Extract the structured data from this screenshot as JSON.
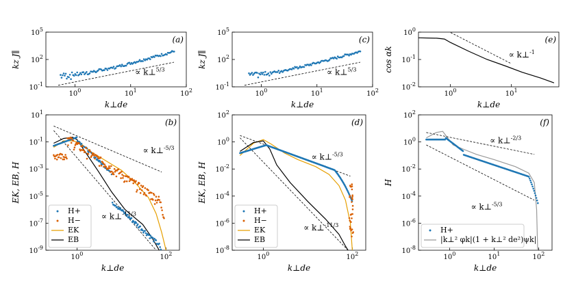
{
  "chart_data": [
    {
      "id": "a",
      "type": "scatter",
      "panel_label": "(a)",
      "xscale": "log",
      "yscale": "log",
      "xlim": [
        0.3,
        100
      ],
      "ylim": [
        0.1,
        100000
      ],
      "xticks": [
        {
          "v": 1,
          "t": "10^0"
        },
        {
          "v": 10,
          "t": "10^1"
        },
        {
          "v": 100,
          "t": "10^2"
        }
      ],
      "yticks": [
        {
          "v": 0.1,
          "t": "10^-1"
        },
        {
          "v": 100,
          "t": "10^2"
        },
        {
          "v": 100000,
          "t": "10^5"
        }
      ],
      "xlabel": "k⊥de",
      "ylabel": "kz J∥",
      "scatter_fn": "slope53_a",
      "color": "#1f77b4",
      "lines": [
        {
          "dash": true,
          "pts": [
            [
              0.5,
              0.15
            ],
            [
              60,
              50
            ]
          ]
        }
      ],
      "annotations": [
        {
          "text": "∝ k⊥^5/3",
          "x": 12,
          "y": 2
        }
      ]
    },
    {
      "id": "c",
      "type": "scatter",
      "panel_label": "(c)",
      "xscale": "log",
      "yscale": "log",
      "xlim": [
        0.3,
        100
      ],
      "ylim": [
        0.1,
        100000
      ],
      "xticks": [
        {
          "v": 1,
          "t": "10^0"
        },
        {
          "v": 10,
          "t": "10^1"
        },
        {
          "v": 100,
          "t": "10^2"
        }
      ],
      "yticks": [
        {
          "v": 0.1,
          "t": "10^-1"
        },
        {
          "v": 100,
          "t": "10^2"
        },
        {
          "v": 100000,
          "t": "10^5"
        }
      ],
      "xlabel": "k⊥de",
      "ylabel": "kz J∥",
      "scatter_fn": "slope53_c",
      "color": "#1f77b4",
      "lines": [
        {
          "dash": true,
          "pts": [
            [
              0.5,
              0.15
            ],
            [
              60,
              50
            ]
          ]
        }
      ],
      "annotations": [
        {
          "text": "∝ k⊥^5/3",
          "x": 15,
          "y": 2
        }
      ]
    },
    {
      "id": "e",
      "type": "line",
      "panel_label": "(e)",
      "xscale": "log",
      "yscale": "log",
      "xlim": [
        0.3,
        60
      ],
      "ylim": [
        0.01,
        1
      ],
      "xticks": [
        {
          "v": 1,
          "t": "10^0"
        },
        {
          "v": 10,
          "t": "10^1"
        }
      ],
      "yticks": [
        {
          "v": 0.01,
          "t": "10^-2"
        },
        {
          "v": 0.1,
          "t": "10^-1"
        },
        {
          "v": 1,
          "t": "10^0"
        }
      ],
      "xlabel": "k⊥de",
      "ylabel": "cos αk",
      "lines": [
        {
          "dash": false,
          "color": "#000000",
          "pts": [
            [
              0.3,
              0.62
            ],
            [
              0.6,
              0.6
            ],
            [
              0.8,
              0.56
            ],
            [
              1.0,
              0.42
            ],
            [
              2,
              0.2
            ],
            [
              4,
              0.1
            ],
            [
              8,
              0.058
            ],
            [
              15,
              0.034
            ],
            [
              30,
              0.021
            ],
            [
              50,
              0.014
            ]
          ]
        },
        {
          "dash": true,
          "color": "#000000",
          "pts": [
            [
              0.9,
              1.1
            ],
            [
              10,
              0.07
            ]
          ]
        }
      ],
      "annotations": [
        {
          "text": "∝ k⊥^-1",
          "x": 9,
          "y": 0.12
        }
      ]
    },
    {
      "id": "b",
      "type": "line",
      "panel_label": "(b)",
      "xscale": "log",
      "yscale": "log",
      "xlim": [
        0.2,
        200
      ],
      "ylim": [
        1e-09,
        10
      ],
      "xticks": [
        {
          "v": 1,
          "t": "10^0"
        },
        {
          "v": 100,
          "t": "10^2"
        }
      ],
      "yticks": [
        {
          "v": 1e-09,
          "t": "10^-9"
        },
        {
          "v": 1e-07,
          "t": "10^-7"
        },
        {
          "v": 1e-05,
          "t": "10^-5"
        },
        {
          "v": 0.001,
          "t": "10^-3"
        },
        {
          "v": 0.1,
          "t": "10^-1"
        },
        {
          "v": 10,
          "t": "10^1"
        }
      ],
      "xlabel": "k⊥de",
      "ylabel": "EK, EB, H",
      "scatter": [
        {
          "name": "H+",
          "color": "#1f77b4",
          "fn": "b_hplus"
        },
        {
          "name": "H−",
          "color": "#d95f02",
          "fn": "b_hminus"
        }
      ],
      "lines": [
        {
          "name": "EK",
          "dash": false,
          "color": "#e69f00",
          "pts": [
            [
              0.3,
              0.04
            ],
            [
              0.5,
              0.12
            ],
            [
              0.8,
              0.12
            ],
            [
              1.2,
              0.08
            ],
            [
              2,
              0.02
            ],
            [
              4,
              0.005
            ],
            [
              10,
              0.0008
            ],
            [
              20,
              0.0001
            ],
            [
              40,
              8e-06
            ],
            [
              60,
              5e-07
            ],
            [
              80,
              2e-08
            ],
            [
              100,
              1e-09
            ]
          ]
        },
        {
          "name": "EB",
          "dash": false,
          "color": "#000000",
          "pts": [
            [
              0.3,
              0.08
            ],
            [
              0.5,
              0.18
            ],
            [
              0.8,
              0.22
            ],
            [
              1.0,
              0.15
            ],
            [
              1.5,
              0.02
            ],
            [
              3,
              0.0007
            ],
            [
              6,
              2e-05
            ],
            [
              12,
              1e-06
            ],
            [
              30,
              8e-08
            ],
            [
              50,
              7e-09
            ],
            [
              70,
              1e-09
            ]
          ]
        },
        {
          "dash": true,
          "color": "#000000",
          "pts": [
            [
              0.3,
              1.5
            ],
            [
              80,
              0.0006
            ]
          ]
        },
        {
          "dash": true,
          "color": "#000000",
          "pts": [
            [
              0.3,
              0.7
            ],
            [
              60,
              1e-09
            ]
          ]
        }
      ],
      "annotations": [
        {
          "text": "∝ k⊥^-5/3",
          "x": 30,
          "y": 0.015
        },
        {
          "text": "∝ k⊥^-11/3",
          "x": 3.5,
          "y": 2e-07
        }
      ],
      "legend": [
        "H+",
        "H−",
        "EK",
        "EB"
      ]
    },
    {
      "id": "d",
      "type": "line",
      "panel_label": "(d)",
      "xscale": "log",
      "yscale": "log",
      "xlim": [
        0.2,
        200
      ],
      "ylim": [
        1e-08,
        100
      ],
      "xticks": [
        {
          "v": 1,
          "t": "10^0"
        },
        {
          "v": 100,
          "t": "10^2"
        }
      ],
      "yticks": [
        {
          "v": 1e-08,
          "t": "10^-8"
        },
        {
          "v": 1e-06,
          "t": "10^-6"
        },
        {
          "v": 0.0001,
          "t": "10^-4"
        },
        {
          "v": 0.01,
          "t": "10^-2"
        },
        {
          "v": 1,
          "t": "10^0"
        },
        {
          "v": 100,
          "t": "10^2"
        }
      ],
      "xlabel": "k⊥de",
      "ylabel": "EK, EB, H",
      "scatter": [
        {
          "name": "H+",
          "color": "#1f77b4",
          "fn": "d_hplus"
        },
        {
          "name": "H−",
          "color": "#d95f02",
          "fn": "d_hminus"
        }
      ],
      "lines": [
        {
          "name": "EK",
          "dash": false,
          "color": "#e69f00",
          "pts": [
            [
              0.3,
              0.1
            ],
            [
              0.6,
              0.8
            ],
            [
              1.0,
              1.5
            ],
            [
              1.5,
              0.7
            ],
            [
              3,
              0.15
            ],
            [
              6,
              0.05
            ],
            [
              15,
              0.015
            ],
            [
              30,
              0.004
            ],
            [
              50,
              0.0006
            ],
            [
              70,
              5e-05
            ],
            [
              90,
              1e-06
            ],
            [
              100,
              1e-08
            ]
          ]
        },
        {
          "name": "EB",
          "dash": false,
          "color": "#000000",
          "pts": [
            [
              0.3,
              0.2
            ],
            [
              0.6,
              0.9
            ],
            [
              1.0,
              1.2
            ],
            [
              1.4,
              0.3
            ],
            [
              2,
              0.02
            ],
            [
              4,
              0.001
            ],
            [
              10,
              4e-05
            ],
            [
              25,
              2e-06
            ],
            [
              50,
              1.5e-07
            ],
            [
              70,
              2e-08
            ],
            [
              80,
              1e-08
            ]
          ]
        },
        {
          "dash": true,
          "color": "#000000",
          "pts": [
            [
              0.3,
              3
            ],
            [
              90,
              0.003
            ]
          ]
        },
        {
          "dash": true,
          "color": "#000000",
          "pts": [
            [
              0.3,
              2
            ],
            [
              80,
              1e-08
            ]
          ]
        }
      ],
      "annotations": [
        {
          "text": "∝ k⊥^-5/3",
          "x": 12,
          "y": 0.05
        },
        {
          "text": "∝ k⊥^-11/3",
          "x": 8,
          "y": 3e-07
        }
      ],
      "legend": [
        "H+",
        "H−",
        "EK",
        "EB"
      ]
    },
    {
      "id": "f",
      "type": "line",
      "panel_label": "(f)",
      "xscale": "log",
      "yscale": "log",
      "xlim": [
        0.2,
        200
      ],
      "ylim": [
        1e-08,
        100
      ],
      "xticks": [
        {
          "v": 1,
          "t": "10^0"
        },
        {
          "v": 10,
          "t": "10^1"
        },
        {
          "v": 100,
          "t": "10^2"
        }
      ],
      "yticks": [
        {
          "v": 1e-08,
          "t": "10^-8"
        },
        {
          "v": 1e-06,
          "t": "10^-6"
        },
        {
          "v": 0.0001,
          "t": "10^-4"
        },
        {
          "v": 0.01,
          "t": "10^-2"
        },
        {
          "v": 1,
          "t": "10^0"
        },
        {
          "v": 100,
          "t": "10^2"
        }
      ],
      "xlabel": "k⊥de",
      "ylabel": "H",
      "scatter": [
        {
          "name": "H+",
          "color": "#1f77b4",
          "fn": "f_hplus"
        }
      ],
      "lines": [
        {
          "name": "combo",
          "dash": false,
          "color": "#999999",
          "pts": [
            [
              0.3,
              2
            ],
            [
              0.5,
              5
            ],
            [
              0.7,
              6
            ],
            [
              0.9,
              2
            ],
            [
              1.2,
              0.6
            ],
            [
              2,
              0.3
            ],
            [
              4,
              0.12
            ],
            [
              10,
              0.05
            ],
            [
              30,
              0.015
            ],
            [
              60,
              0.005
            ],
            [
              80,
              0.001
            ],
            [
              90,
              1e-05
            ],
            [
              95,
              1e-08
            ]
          ]
        },
        {
          "dash": true,
          "color": "#000000",
          "pts": [
            [
              0.3,
              5
            ],
            [
              80,
              0.12
            ]
          ]
        },
        {
          "dash": true,
          "color": "#000000",
          "pts": [
            [
              0.3,
              0.6
            ],
            [
              80,
              5e-05
            ]
          ]
        }
      ],
      "annotations": [
        {
          "text": "∝ k⊥^-2/3",
          "x": 8,
          "y": 0.8
        },
        {
          "text": "∝ k⊥^-5/3",
          "x": 3,
          "y": 1e-05
        }
      ],
      "legend": [
        "H+",
        "|k⊥² φk|(1 + k⊥² de²)ψk|"
      ]
    }
  ]
}
